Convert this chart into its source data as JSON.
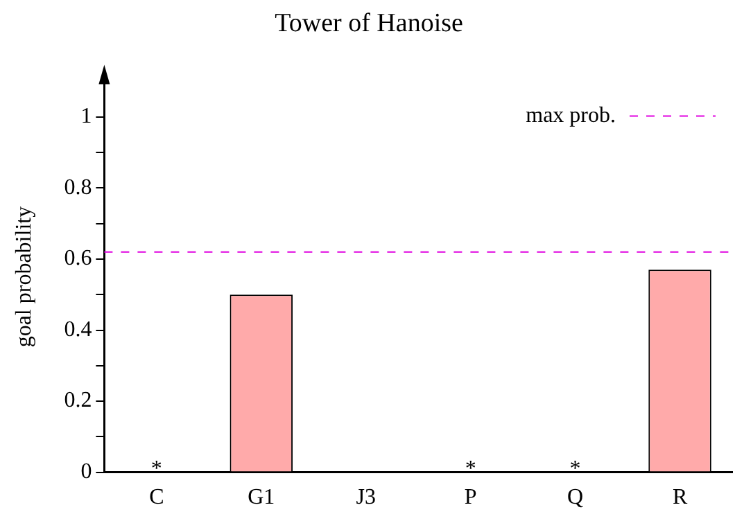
{
  "chart_data": {
    "type": "bar",
    "title": "Tower of Hanoise",
    "ylabel": "goal probability",
    "categories": [
      "C",
      "G1",
      "J3",
      "P",
      "Q",
      "R"
    ],
    "values": [
      0,
      0.5,
      0,
      0,
      0,
      0.57
    ],
    "color": "#ffaaaa",
    "ylim": [
      0,
      1.1
    ],
    "yticks": [
      0,
      {
        "value": 0.1,
        "label": null
      },
      0.2,
      {
        "value": 0.3,
        "label": null
      },
      0.4,
      {
        "value": 0.5,
        "label": null
      },
      0.6,
      {
        "value": 0.7,
        "label": null
      },
      0.8,
      {
        "value": 0.9,
        "label": null
      },
      1
    ],
    "ref_lines": [
      {
        "axis": "y",
        "value": 0.62,
        "label": "max prob.",
        "color": "#e000e0",
        "line_style": "dashed"
      }
    ],
    "annotations": [
      {
        "text": "*",
        "x": "C",
        "y": 0
      },
      {
        "text": "*",
        "x": "P",
        "y": 0
      },
      {
        "text": "*",
        "x": "Q",
        "y": 0
      }
    ],
    "grid": false,
    "legend": "top right"
  }
}
